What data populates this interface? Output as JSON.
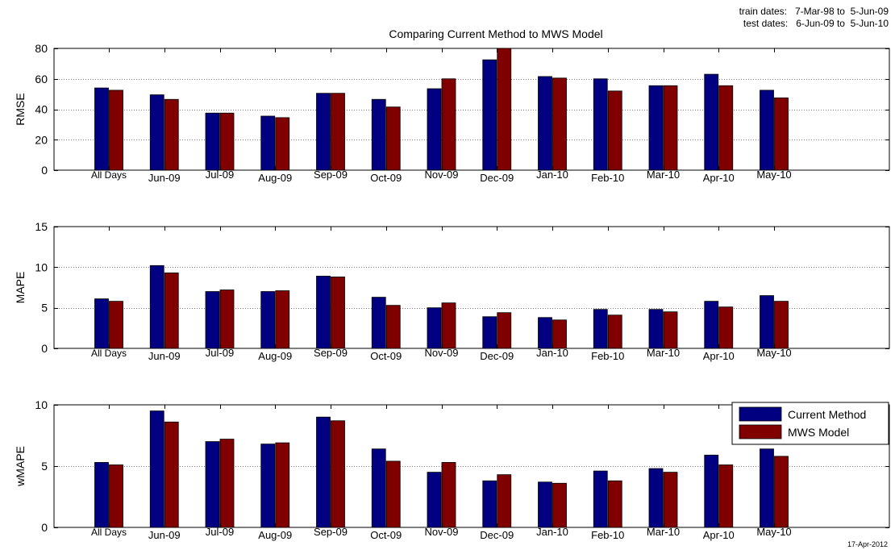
{
  "header": {
    "train_dates": "train dates:   7-Mar-98 to  5-Jun-09",
    "test_dates": "test dates:   6-Jun-09 to  5-Jun-10"
  },
  "footer": {
    "print_date": "17-Apr-2012"
  },
  "colors": {
    "current": "#000080",
    "mws": "#800000",
    "grid": "#000000"
  },
  "chart_data": [
    {
      "type": "bar",
      "title": "Comparing Current Method to MWS Model",
      "ylabel": "RMSE",
      "xlabel": "",
      "ylim": [
        0,
        80
      ],
      "yticks": [
        "0",
        "20",
        "40",
        "60",
        "80"
      ],
      "grid": true,
      "categories": [
        "All Days",
        "Jun-09",
        "Jul-09",
        "Aug-09",
        "Sep-09",
        "Oct-09",
        "Nov-09",
        "Dec-09",
        "Jan-10",
        "Feb-10",
        "Mar-10",
        "Apr-10",
        "May-10"
      ],
      "series": [
        {
          "name": "Current Method",
          "values": [
            54,
            49.5,
            37.5,
            35.5,
            50.5,
            46.5,
            53.5,
            72.5,
            61.5,
            60,
            55.5,
            63,
            52.5
          ]
        },
        {
          "name": "MWS Model",
          "values": [
            52.5,
            46.5,
            37.5,
            34.5,
            50.5,
            41.5,
            60,
            80,
            60.5,
            52,
            55.5,
            55.5,
            47.5
          ]
        }
      ]
    },
    {
      "type": "bar",
      "title": "",
      "ylabel": "MAPE",
      "xlabel": "",
      "ylim": [
        0,
        15
      ],
      "yticks": [
        "0",
        "5",
        "10",
        "15"
      ],
      "grid": true,
      "categories": [
        "All Days",
        "Jun-09",
        "Jul-09",
        "Aug-09",
        "Sep-09",
        "Oct-09",
        "Nov-09",
        "Dec-09",
        "Jan-10",
        "Feb-10",
        "Mar-10",
        "Apr-10",
        "May-10"
      ],
      "series": [
        {
          "name": "Current Method",
          "values": [
            6.1,
            10.2,
            7,
            7,
            8.9,
            6.3,
            5,
            3.9,
            3.8,
            4.8,
            4.8,
            5.8,
            6.5
          ]
        },
        {
          "name": "MWS Model",
          "values": [
            5.8,
            9.3,
            7.2,
            7.1,
            8.8,
            5.3,
            5.6,
            4.4,
            3.5,
            4.1,
            4.5,
            5.1,
            5.8
          ]
        }
      ]
    },
    {
      "type": "bar",
      "title": "",
      "ylabel": "wMAPE",
      "xlabel": "",
      "ylim": [
        0,
        10
      ],
      "yticks": [
        "0",
        "5",
        "10"
      ],
      "grid": true,
      "legend": "top-right",
      "categories": [
        "All Days",
        "Jun-09",
        "Jul-09",
        "Aug-09",
        "Sep-09",
        "Oct-09",
        "Nov-09",
        "Dec-09",
        "Jan-10",
        "Feb-10",
        "Mar-10",
        "Apr-10",
        "May-10"
      ],
      "series": [
        {
          "name": "Current Method",
          "values": [
            5.3,
            9.5,
            7,
            6.8,
            9,
            6.4,
            4.5,
            3.8,
            3.7,
            4.6,
            4.8,
            5.9,
            6.4
          ]
        },
        {
          "name": "MWS Model",
          "values": [
            5.1,
            8.6,
            7.2,
            6.9,
            8.7,
            5.4,
            5.3,
            4.3,
            3.6,
            3.8,
            4.5,
            5.1,
            5.8
          ]
        }
      ]
    }
  ]
}
